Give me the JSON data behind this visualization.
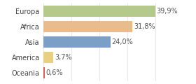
{
  "categories": [
    "Europa",
    "Africa",
    "Asia",
    "America",
    "Oceania"
  ],
  "values": [
    39.9,
    31.8,
    24.0,
    3.7,
    0.6
  ],
  "labels": [
    "39,9%",
    "31,8%",
    "24,0%",
    "3,7%",
    "0,6%"
  ],
  "bar_colors": [
    "#b5c98a",
    "#e8bc8c",
    "#7b9fc7",
    "#e8d080",
    "#e05a5a"
  ],
  "background_color": "#ffffff",
  "xlim": [
    0,
    46
  ],
  "bar_height": 0.72,
  "label_fontsize": 7.0,
  "tick_fontsize": 7.0,
  "grid_ticks": [
    0,
    10,
    20,
    30,
    40
  ],
  "grid_color": "#dddddd"
}
